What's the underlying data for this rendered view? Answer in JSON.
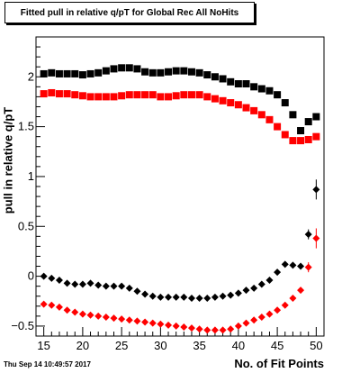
{
  "timestamp": "Thu Sep 14 10:49:57 2017",
  "chart_data": {
    "type": "scatter",
    "title": "Fitted pull in relative q/pT for Global Rec All NoHits",
    "xlabel": "No. of Fit Points",
    "ylabel": "pull in relative q/pT",
    "xlim": [
      14,
      51
    ],
    "ylim": [
      -0.6,
      2.4
    ],
    "xticks": [
      15,
      20,
      25,
      30,
      35,
      40,
      45,
      50
    ],
    "yticks": [
      -0.5,
      0,
      0.5,
      1,
      1.5,
      2
    ],
    "ytick_labels": [
      "−0.5",
      "0",
      "0.5",
      "1",
      "1.5",
      "2"
    ],
    "series": [
      {
        "color": "#000000",
        "x": [
          15,
          16,
          17,
          18,
          19,
          20,
          21,
          22,
          23,
          24,
          25,
          26,
          27,
          28,
          29,
          30,
          31,
          32,
          33,
          34,
          35,
          36,
          37,
          38,
          39,
          40,
          41,
          42,
          43,
          44,
          45,
          46,
          47,
          48,
          49,
          50
        ],
        "y": [
          2.03,
          2.04,
          2.03,
          2.03,
          2.03,
          2.02,
          2.03,
          2.04,
          2.06,
          2.08,
          2.09,
          2.09,
          2.08,
          2.05,
          2.04,
          2.04,
          2.05,
          2.06,
          2.06,
          2.05,
          2.04,
          2.02,
          2.0,
          1.98,
          1.95,
          1.93,
          1.93,
          1.9,
          1.88,
          1.86,
          1.82,
          1.74,
          1.62,
          1.46,
          1.55,
          1.6
        ],
        "errors": [
          0,
          0,
          0,
          0,
          0,
          0,
          0,
          0,
          0,
          0,
          0,
          0,
          0,
          0,
          0,
          0,
          0,
          0,
          0,
          0,
          0,
          0,
          0,
          0,
          0,
          0,
          0,
          0,
          0,
          0,
          0,
          0,
          0,
          0,
          0,
          0
        ]
      },
      {
        "color": "#ff0000",
        "x": [
          15,
          16,
          17,
          18,
          19,
          20,
          21,
          22,
          23,
          24,
          25,
          26,
          27,
          28,
          29,
          30,
          31,
          32,
          33,
          34,
          35,
          36,
          37,
          38,
          39,
          40,
          41,
          42,
          43,
          44,
          45,
          46,
          47,
          48,
          49,
          50
        ],
        "y": [
          1.83,
          1.84,
          1.83,
          1.83,
          1.82,
          1.81,
          1.8,
          1.8,
          1.8,
          1.8,
          1.81,
          1.82,
          1.82,
          1.82,
          1.82,
          1.8,
          1.8,
          1.81,
          1.82,
          1.82,
          1.82,
          1.8,
          1.78,
          1.76,
          1.74,
          1.72,
          1.69,
          1.66,
          1.62,
          1.57,
          1.5,
          1.42,
          1.36,
          1.36,
          1.37,
          1.4
        ],
        "errors": [
          0,
          0,
          0,
          0,
          0,
          0,
          0,
          0,
          0,
          0,
          0,
          0,
          0,
          0,
          0,
          0,
          0,
          0,
          0,
          0,
          0,
          0,
          0,
          0,
          0,
          0,
          0,
          0,
          0,
          0,
          0,
          0,
          0,
          0,
          0,
          0
        ]
      },
      {
        "color": "#000000",
        "x": [
          15,
          16,
          17,
          18,
          19,
          20,
          21,
          22,
          23,
          24,
          25,
          26,
          27,
          28,
          29,
          30,
          31,
          32,
          33,
          34,
          35,
          36,
          37,
          38,
          39,
          40,
          41,
          42,
          43,
          44,
          45,
          46,
          47,
          48,
          49,
          50
        ],
        "y": [
          0.0,
          -0.02,
          -0.04,
          -0.07,
          -0.08,
          -0.08,
          -0.07,
          -0.09,
          -0.1,
          -0.1,
          -0.1,
          -0.12,
          -0.15,
          -0.18,
          -0.2,
          -0.21,
          -0.21,
          -0.21,
          -0.21,
          -0.22,
          -0.22,
          -0.22,
          -0.21,
          -0.2,
          -0.19,
          -0.17,
          -0.14,
          -0.12,
          -0.08,
          -0.04,
          0.04,
          0.12,
          0.11,
          0.1,
          0.42,
          0.87
        ],
        "errors": [
          0,
          0,
          0,
          0,
          0,
          0,
          0,
          0,
          0,
          0,
          0,
          0,
          0,
          0,
          0,
          0,
          0,
          0,
          0,
          0,
          0,
          0,
          0,
          0,
          0,
          0,
          0,
          0,
          0,
          0,
          0,
          0,
          0,
          0,
          0.05,
          0.1
        ]
      },
      {
        "color": "#ff0000",
        "x": [
          15,
          16,
          17,
          18,
          19,
          20,
          21,
          22,
          23,
          24,
          25,
          26,
          27,
          28,
          29,
          30,
          31,
          32,
          33,
          34,
          35,
          36,
          37,
          38,
          39,
          40,
          41,
          42,
          43,
          44,
          45,
          46,
          47,
          48,
          49,
          50
        ],
        "y": [
          -0.28,
          -0.29,
          -0.31,
          -0.34,
          -0.36,
          -0.38,
          -0.39,
          -0.4,
          -0.41,
          -0.42,
          -0.43,
          -0.44,
          -0.45,
          -0.46,
          -0.47,
          -0.48,
          -0.49,
          -0.5,
          -0.51,
          -0.52,
          -0.53,
          -0.54,
          -0.54,
          -0.54,
          -0.53,
          -0.5,
          -0.47,
          -0.44,
          -0.41,
          -0.38,
          -0.34,
          -0.29,
          -0.22,
          -0.14,
          0.09,
          0.38
        ],
        "errors": [
          0,
          0,
          0,
          0,
          0,
          0,
          0,
          0,
          0,
          0,
          0,
          0,
          0,
          0,
          0,
          0,
          0,
          0,
          0,
          0,
          0,
          0,
          0,
          0,
          0,
          0,
          0,
          0,
          0,
          0,
          0,
          0,
          0,
          0,
          0.05,
          0.1
        ]
      }
    ]
  }
}
